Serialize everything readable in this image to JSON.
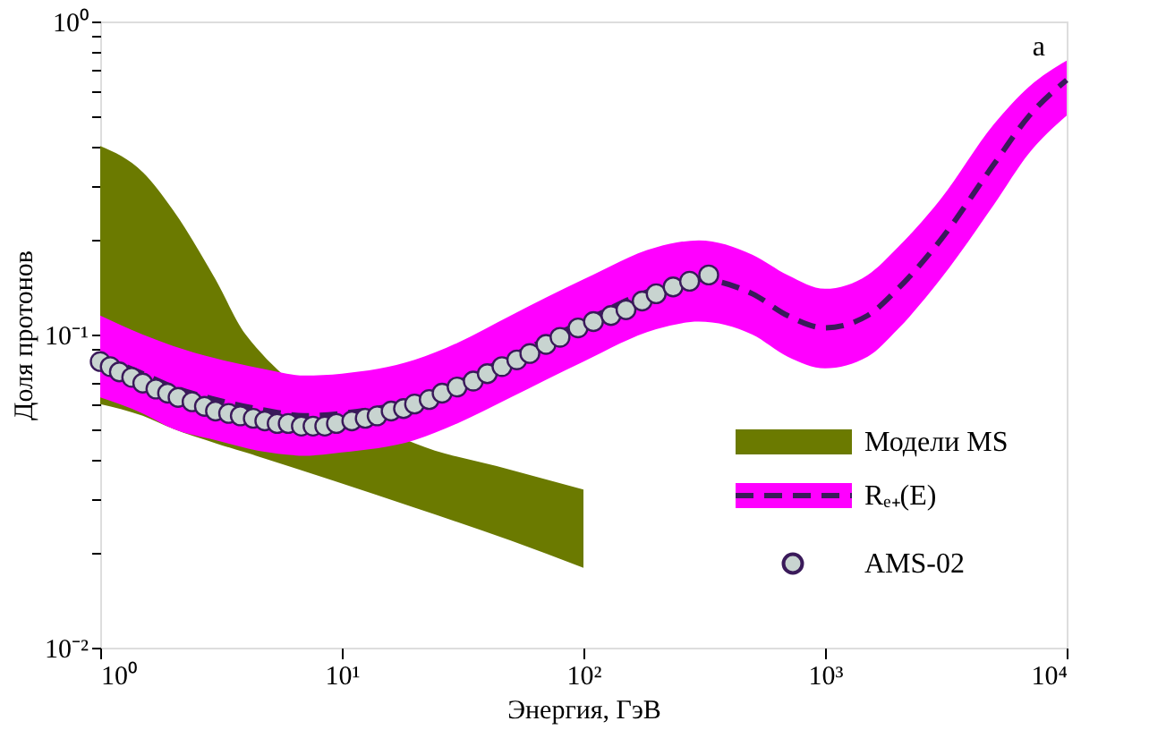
{
  "chart_data": {
    "type": "line",
    "xlabel": "Энергия, ГэВ",
    "ylabel": "Доля протонов",
    "log": "xy",
    "grid": false,
    "legend": "bottom right",
    "annotations": [
      "a"
    ],
    "xlim": [
      1,
      10000
    ],
    "ylim": [
      0.01,
      1
    ],
    "xticks": [
      {
        "value": 1,
        "label": "10⁰"
      },
      {
        "value": 10,
        "label": "10¹"
      },
      {
        "value": 100,
        "label": "10²"
      },
      {
        "value": 1000,
        "label": "10³"
      },
      {
        "value": 10000,
        "label": "10⁴"
      }
    ],
    "yticks": [
      {
        "value": 0.01,
        "label": "10⁻²"
      },
      {
        "value": 0.02,
        "label": null
      },
      {
        "value": 0.03,
        "label": null
      },
      {
        "value": 0.04,
        "label": null
      },
      {
        "value": 0.05,
        "label": null
      },
      {
        "value": 0.06,
        "label": null
      },
      {
        "value": 0.07,
        "label": null
      },
      {
        "value": 0.08,
        "label": null
      },
      {
        "value": 0.09,
        "label": null
      },
      {
        "value": 0.1,
        "label": "10⁻¹"
      },
      {
        "value": 0.2,
        "label": null
      },
      {
        "value": 0.3,
        "label": null
      },
      {
        "value": 0.4,
        "label": null
      },
      {
        "value": 0.5,
        "label": null
      },
      {
        "value": 0.6,
        "label": null
      },
      {
        "value": 0.7,
        "label": null
      },
      {
        "value": 0.8,
        "label": null
      },
      {
        "value": 0.9,
        "label": null
      },
      {
        "value": 1,
        "label": "10⁰"
      }
    ],
    "series": [
      {
        "name": "Модели MS",
        "color": "#6b7a00",
        "x": [
          1,
          1.5,
          2,
          3,
          4,
          20,
          50,
          100
        ],
        "values": [
          null,
          null,
          null,
          null,
          null,
          null,
          null,
          null
        ],
        "upper": [
          0.4,
          0.33,
          0.25,
          0.15,
          0.1,
          0.045,
          0.037,
          0.032
        ],
        "lower": [
          0.06,
          0.055,
          0.05,
          0.045,
          0.042,
          0.028,
          0.022,
          0.018
        ]
      },
      {
        "name": "Rₑ₊(E)",
        "color": "#ff00ff",
        "x": [
          1,
          1.5,
          2,
          3,
          5,
          7,
          10,
          20,
          30,
          50,
          100,
          200,
          300,
          500,
          700,
          1000,
          1500,
          2000,
          3000,
          5000,
          7000,
          10000
        ],
        "values": [
          null,
          null,
          null,
          null,
          null,
          null,
          null,
          null,
          null,
          null,
          null,
          null,
          null,
          null,
          null,
          null,
          null,
          null,
          null,
          null,
          null,
          null
        ],
        "upper": [
          0.115,
          0.1,
          0.092,
          0.084,
          0.077,
          0.074,
          0.075,
          0.083,
          0.094,
          0.115,
          0.15,
          0.19,
          0.2,
          0.18,
          0.155,
          0.14,
          0.155,
          0.19,
          0.27,
          0.47,
          0.62,
          0.75
        ],
        "lower": [
          0.063,
          0.056,
          0.05,
          0.046,
          0.042,
          0.041,
          0.042,
          0.046,
          0.052,
          0.063,
          0.082,
          0.104,
          0.11,
          0.1,
          0.085,
          0.078,
          0.085,
          0.104,
          0.15,
          0.26,
          0.38,
          0.5
        ]
      },
      {
        "color": "#3a1a5a",
        "line_style": "dashed",
        "x": [
          1,
          1.5,
          2,
          3,
          5,
          7,
          10,
          20,
          30,
          50,
          100,
          200,
          300,
          500,
          700,
          1000,
          1500,
          2000,
          3000,
          5000,
          7000,
          10000
        ],
        "values": [
          0.085,
          0.075,
          0.068,
          0.062,
          0.057,
          0.055,
          0.056,
          0.062,
          0.07,
          0.085,
          0.11,
          0.14,
          0.15,
          0.135,
          0.115,
          0.105,
          0.115,
          0.14,
          0.2,
          0.35,
          0.5,
          0.65
        ]
      },
      {
        "name": "AMS-02",
        "type": "scatter",
        "color": "#c8d4d0",
        "marker": "circle",
        "x": [
          1,
          1.1,
          1.2,
          1.35,
          1.5,
          1.7,
          1.9,
          2.1,
          2.4,
          2.7,
          3,
          3.4,
          3.8,
          4.3,
          4.8,
          5.4,
          6,
          6.8,
          7.6,
          8.5,
          9.5,
          11,
          12.5,
          14,
          16,
          18,
          20,
          23,
          26,
          30,
          35,
          40,
          46,
          53,
          60,
          70,
          80,
          95,
          110,
          130,
          150,
          175,
          200,
          235,
          275,
          330
        ],
        "values": [
          0.082,
          0.079,
          0.076,
          0.073,
          0.07,
          0.067,
          0.065,
          0.063,
          0.061,
          0.059,
          0.057,
          0.056,
          0.055,
          0.054,
          0.053,
          0.052,
          0.052,
          0.051,
          0.051,
          0.051,
          0.052,
          0.053,
          0.054,
          0.055,
          0.057,
          0.058,
          0.06,
          0.062,
          0.065,
          0.068,
          0.071,
          0.075,
          0.079,
          0.083,
          0.087,
          0.093,
          0.098,
          0.105,
          0.11,
          0.115,
          0.12,
          0.128,
          0.135,
          0.142,
          0.148,
          0.155
        ]
      }
    ]
  }
}
